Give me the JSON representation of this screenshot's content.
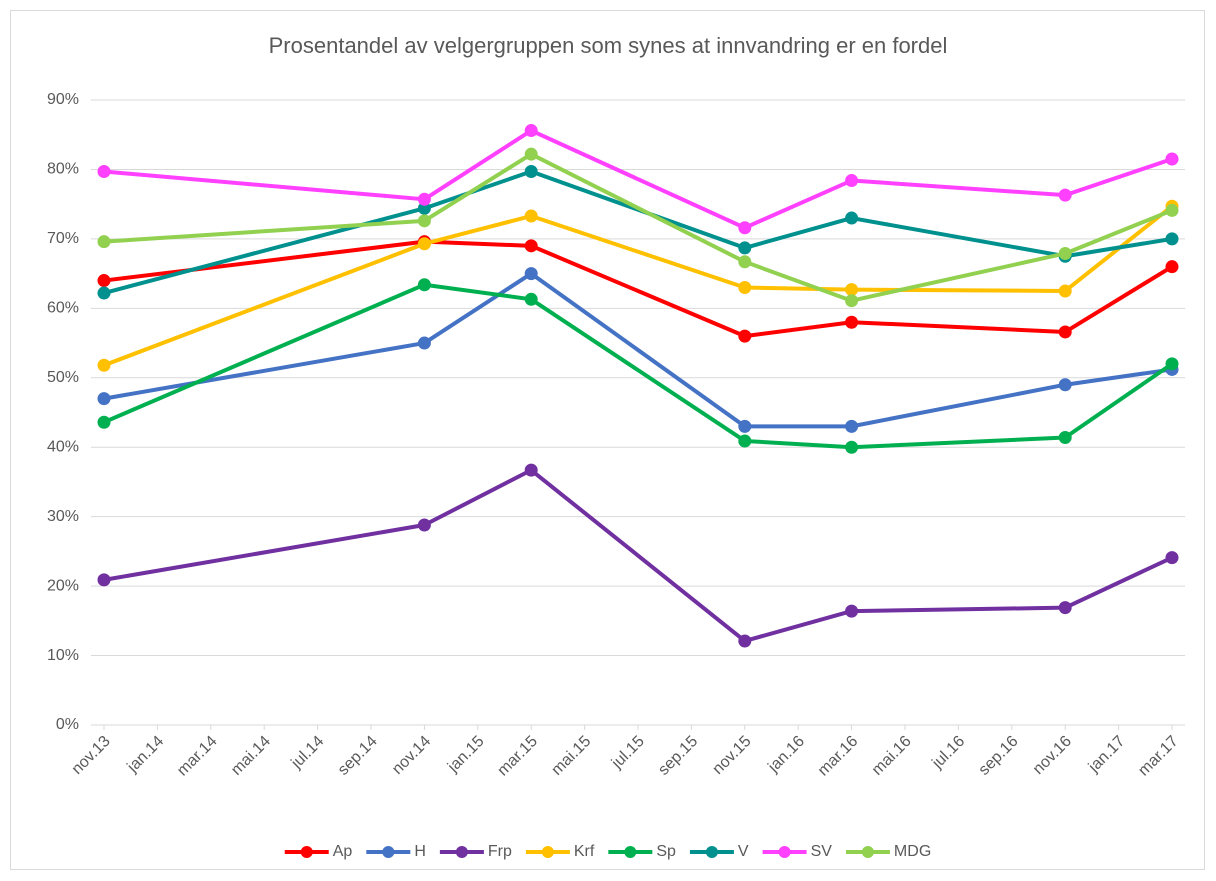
{
  "chart_data": {
    "type": "line",
    "title": "Prosentandel av velgergruppen som synes at innvandring er en fordel",
    "x": [
      "nov.13",
      "nov.14",
      "mar.15",
      "nov.15",
      "mar.16",
      "nov.16",
      "mar.17"
    ],
    "xticks": [
      "nov.13",
      "jan.14",
      "mar.14",
      "mai.14",
      "jul.14",
      "sep.14",
      "nov.14",
      "jan.15",
      "mar.15",
      "mai.15",
      "jul.15",
      "sep.15",
      "nov.15",
      "jan.16",
      "mar.16",
      "mai.16",
      "jul.16",
      "sep.16",
      "nov.16",
      "jan.17",
      "mar.17"
    ],
    "ylim": [
      0,
      90
    ],
    "yticks": [
      {
        "value": 0,
        "label": "0%"
      },
      {
        "value": 10,
        "label": "10%"
      },
      {
        "value": 20,
        "label": "20%"
      },
      {
        "value": 30,
        "label": "30%"
      },
      {
        "value": 40,
        "label": "40%"
      },
      {
        "value": 50,
        "label": "50%"
      },
      {
        "value": 60,
        "label": "60%"
      },
      {
        "value": 70,
        "label": "70%"
      },
      {
        "value": 80,
        "label": "80%"
      },
      {
        "value": 90,
        "label": "90%"
      }
    ],
    "grid": true,
    "legend": "bottom",
    "series": [
      {
        "name": "Ap",
        "color": "#ff0000",
        "values": [
          64,
          69.6,
          69,
          56,
          58,
          56.6,
          66
        ]
      },
      {
        "name": "H",
        "color": "#4472c4",
        "values": [
          47,
          55,
          65,
          43,
          43,
          49,
          51.2
        ]
      },
      {
        "name": "Frp",
        "color": "#7030a0",
        "values": [
          20.9,
          28.8,
          36.7,
          12.1,
          16.4,
          16.9,
          24.1
        ]
      },
      {
        "name": "Krf",
        "color": "#ffc000",
        "values": [
          51.8,
          69.3,
          73.3,
          63,
          62.7,
          62.5,
          74.7
        ]
      },
      {
        "name": "Sp",
        "color": "#00b050",
        "values": [
          43.6,
          63.4,
          61.3,
          40.9,
          40,
          41.4,
          52
        ]
      },
      {
        "name": "V",
        "color": "#00918f",
        "values": [
          62.2,
          74.4,
          79.7,
          68.7,
          73,
          67.5,
          70
        ]
      },
      {
        "name": "SV",
        "color": "#ff40ff",
        "values": [
          79.7,
          75.7,
          85.6,
          71.6,
          78.4,
          76.3,
          81.5
        ]
      },
      {
        "name": "MDG",
        "color": "#92d050",
        "values": [
          69.6,
          72.6,
          82.2,
          66.7,
          61.1,
          67.9,
          74.1
        ]
      }
    ]
  }
}
